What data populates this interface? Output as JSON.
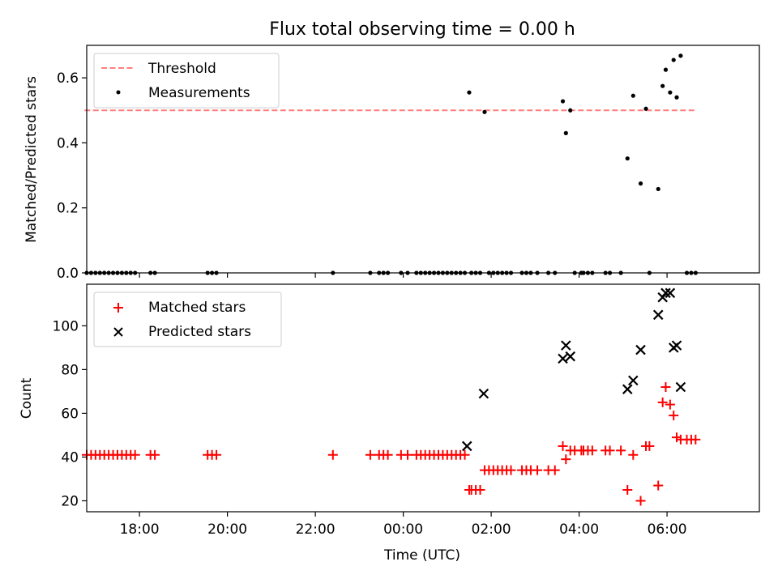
{
  "figure": {
    "title": "Flux total observing time = 0.00 h"
  },
  "chart_data": [
    {
      "type": "scatter",
      "panel": "top",
      "title": "Flux total observing time = 0.00 h",
      "xlabel": "",
      "ylabel": "Matched/Predicted stars",
      "x_unit": "hours after 00:00 UTC (negative = previous day)",
      "xlim": [
        -7.2,
        8.1
      ],
      "ylim": [
        0,
        0.7
      ],
      "yticks": [
        0.0,
        0.2,
        0.4,
        0.6
      ],
      "ytick_labels": [
        "0.0",
        "0.2",
        "0.4",
        "0.6"
      ],
      "xticks": [
        -6,
        -4,
        -2,
        0,
        2,
        4,
        6
      ],
      "legend_position": "upper left",
      "grid": false,
      "series": [
        {
          "name": "Threshold",
          "kind": "dashed-line",
          "color": "#ff7f7f",
          "x": [
            -7.25,
            6.67
          ],
          "y": [
            0.5,
            0.5
          ]
        },
        {
          "name": "Measurements",
          "kind": "dots",
          "color": "#000000",
          "x": [
            -7.2,
            -7.1,
            -7.0,
            -6.9,
            -6.8,
            -6.7,
            -6.6,
            -6.5,
            -6.4,
            -6.3,
            -6.2,
            -6.1,
            -5.75,
            -5.65,
            -4.45,
            -4.35,
            -4.25,
            -1.6,
            -0.75,
            -0.55,
            -0.45,
            -0.35,
            -0.05,
            0.1,
            0.3,
            0.4,
            0.5,
            0.6,
            0.7,
            0.8,
            0.9,
            1.0,
            1.1,
            1.2,
            1.3,
            1.4,
            1.5,
            1.55,
            1.65,
            1.75,
            1.85,
            1.95,
            2.05,
            2.15,
            2.25,
            2.35,
            2.45,
            2.7,
            2.8,
            2.9,
            3.05,
            3.3,
            3.45,
            3.63,
            3.7,
            3.8,
            3.9,
            4.05,
            4.1,
            4.2,
            4.3,
            4.6,
            4.7,
            4.95,
            5.1,
            5.23,
            5.4,
            5.52,
            5.6,
            5.8,
            5.9,
            5.97,
            6.07,
            6.15,
            6.22,
            6.31,
            6.45,
            6.55,
            6.65
          ],
          "y": [
            0,
            0,
            0,
            0,
            0,
            0,
            0,
            0,
            0,
            0,
            0,
            0,
            0,
            0,
            0,
            0,
            0,
            0,
            0,
            0,
            0,
            0,
            0,
            0,
            0,
            0,
            0,
            0,
            0,
            0,
            0,
            0,
            0,
            0,
            0,
            0,
            0.555,
            0,
            0,
            0,
            0.495,
            0,
            0,
            0,
            0,
            0,
            0,
            0,
            0,
            0,
            0,
            0,
            0,
            0.528,
            0.43,
            0.5,
            0,
            0,
            0,
            0,
            0,
            0,
            0,
            0,
            0.352,
            0.545,
            0.275,
            0.505,
            0,
            0.258,
            0.575,
            0.625,
            0.555,
            0.655,
            0.54,
            0.668,
            0,
            0,
            0
          ]
        }
      ]
    },
    {
      "type": "scatter",
      "panel": "bottom",
      "xlabel": "Time (UTC)",
      "ylabel": "Count",
      "x_unit": "hours after 00:00 UTC (negative = previous day)",
      "xlim": [
        -7.2,
        8.1
      ],
      "ylim": [
        15,
        119
      ],
      "yticks": [
        20,
        40,
        60,
        80,
        100
      ],
      "ytick_labels": [
        "20",
        "40",
        "60",
        "80",
        "100"
      ],
      "xticks": [
        -6,
        -4,
        -2,
        0,
        2,
        4,
        6
      ],
      "xtick_labels": [
        "18:00",
        "20:00",
        "22:00",
        "00:00",
        "02:00",
        "04:00",
        "06:00"
      ],
      "legend_position": "upper left",
      "grid": false,
      "series": [
        {
          "name": "Matched stars",
          "marker": "plus",
          "color": "#ff0000",
          "x": [
            -7.2,
            -7.1,
            -7.0,
            -6.9,
            -6.8,
            -6.7,
            -6.6,
            -6.5,
            -6.4,
            -6.3,
            -6.2,
            -6.1,
            -5.75,
            -5.65,
            -4.45,
            -4.35,
            -4.25,
            -1.6,
            -0.75,
            -0.55,
            -0.45,
            -0.35,
            -0.05,
            0.1,
            0.3,
            0.4,
            0.5,
            0.6,
            0.7,
            0.8,
            0.9,
            1.0,
            1.1,
            1.2,
            1.3,
            1.4,
            1.5,
            1.55,
            1.65,
            1.75,
            1.85,
            1.95,
            2.05,
            2.15,
            2.25,
            2.35,
            2.45,
            2.7,
            2.8,
            2.9,
            3.05,
            3.3,
            3.45,
            3.63,
            3.7,
            3.8,
            3.9,
            4.05,
            4.1,
            4.2,
            4.3,
            4.6,
            4.7,
            4.95,
            5.1,
            5.23,
            5.4,
            5.52,
            5.6,
            5.8,
            5.9,
            5.97,
            6.07,
            6.15,
            6.22,
            6.31,
            6.45,
            6.55,
            6.65
          ],
          "y": [
            41,
            41,
            41,
            41,
            41,
            41,
            41,
            41,
            41,
            41,
            41,
            41,
            41,
            41,
            41,
            41,
            41,
            41,
            41,
            41,
            41,
            41,
            41,
            41,
            41,
            41,
            41,
            41,
            41,
            41,
            41,
            41,
            41,
            41,
            41,
            41,
            25,
            25,
            25,
            25,
            34,
            34,
            34,
            34,
            34,
            34,
            34,
            34,
            34,
            34,
            34,
            34,
            34,
            45,
            39,
            43,
            43,
            43,
            43,
            43,
            43,
            43,
            43,
            43,
            25,
            41,
            20,
            45,
            45,
            27,
            65,
            72,
            64,
            59,
            49,
            48,
            48,
            48,
            48
          ]
        },
        {
          "name": "Predicted stars",
          "marker": "x",
          "color": "#000000",
          "x": [
            1.45,
            1.83,
            3.63,
            3.7,
            3.8,
            5.1,
            5.23,
            5.4,
            5.8,
            5.9,
            5.97,
            6.07,
            6.15,
            6.22,
            6.31
          ],
          "y": [
            45,
            69,
            85,
            91,
            86,
            71,
            75,
            89,
            105,
            113,
            115,
            115,
            90,
            91,
            72
          ]
        }
      ]
    }
  ]
}
